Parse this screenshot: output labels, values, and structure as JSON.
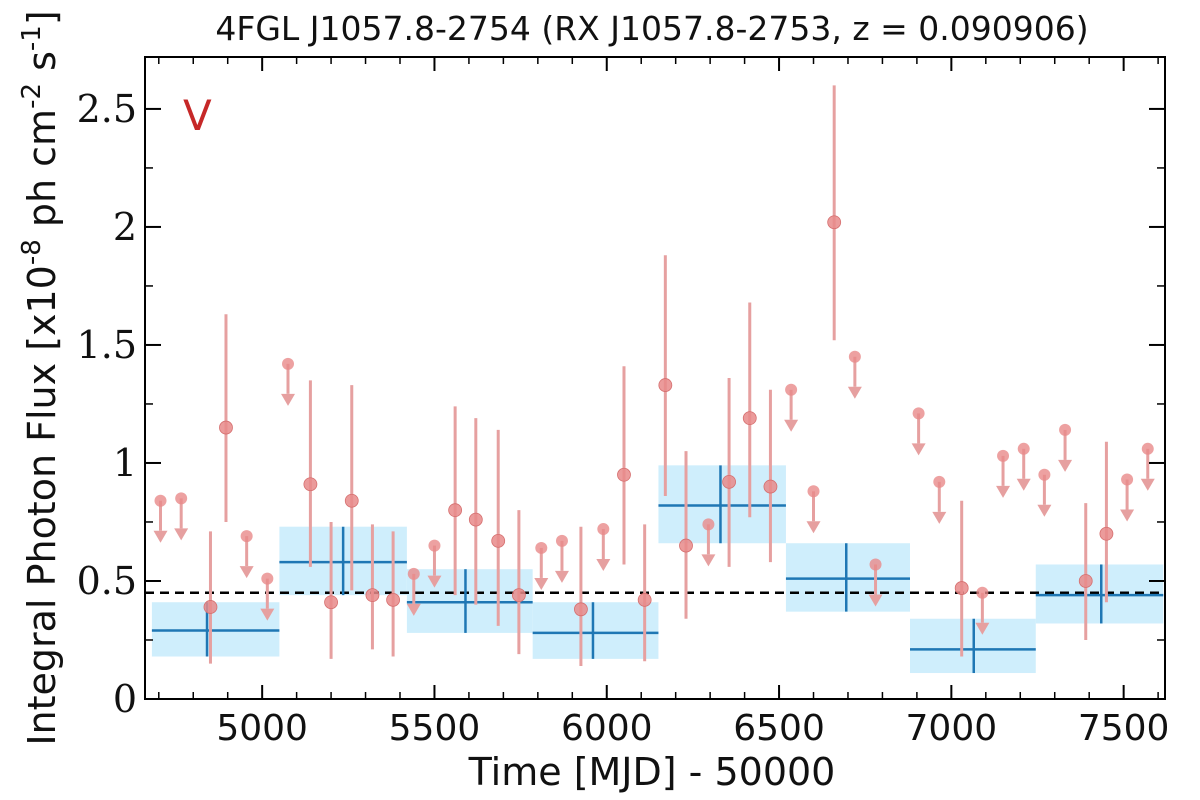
{
  "chart_data": {
    "type": "scatter",
    "title": "4FGL J1057.8-2754 (RX J1057.8-2753, z = 0.090906)",
    "xlabel": "Time [MJD] - 50000",
    "ylabel": "Integral Photon Flux [x10^-8 ph cm^-2 s^-1]",
    "xlim": [
      4660,
      7620
    ],
    "ylim": [
      0,
      2.72
    ],
    "x_ticks": [
      5000,
      5500,
      6000,
      6500,
      7000,
      7500
    ],
    "y_ticks": [
      0,
      0.5,
      1,
      1.5,
      2,
      2.5
    ],
    "y_tick_labels": [
      "0",
      "0.5",
      "1",
      "1.5",
      "2",
      "2.5"
    ],
    "annotation": "V",
    "reference_line": {
      "y": 0.45,
      "style": "dashed",
      "color": "#000000"
    },
    "colors": {
      "points": "#e88a8a",
      "errorbar": "#e6a0a0",
      "bin_line": "#1f77b4",
      "bin_fill": "#cfeefc"
    },
    "series": [
      {
        "kind": "detections",
        "points": [
          {
            "x": 4850,
            "y": 0.39,
            "lo": 0.15,
            "hi": 0.71
          },
          {
            "x": 4895,
            "y": 1.15,
            "lo": 0.75,
            "hi": 1.63
          },
          {
            "x": 5140,
            "y": 0.91,
            "lo": 0.56,
            "hi": 1.35
          },
          {
            "x": 5200,
            "y": 0.41,
            "lo": 0.17,
            "hi": 0.75
          },
          {
            "x": 5260,
            "y": 0.84,
            "lo": 0.46,
            "hi": 1.33
          },
          {
            "x": 5320,
            "y": 0.44,
            "lo": 0.21,
            "hi": 0.74
          },
          {
            "x": 5380,
            "y": 0.42,
            "lo": 0.18,
            "hi": 0.71
          },
          {
            "x": 5560,
            "y": 0.8,
            "lo": 0.44,
            "hi": 1.24
          },
          {
            "x": 5620,
            "y": 0.76,
            "lo": 0.4,
            "hi": 1.19
          },
          {
            "x": 5685,
            "y": 0.67,
            "lo": 0.31,
            "hi": 1.14
          },
          {
            "x": 5745,
            "y": 0.44,
            "lo": 0.19,
            "hi": 0.8
          },
          {
            "x": 5925,
            "y": 0.38,
            "lo": 0.14,
            "hi": 0.73
          },
          {
            "x": 6050,
            "y": 0.95,
            "lo": 0.57,
            "hi": 1.41
          },
          {
            "x": 6110,
            "y": 0.42,
            "lo": 0.16,
            "hi": 0.74
          },
          {
            "x": 6170,
            "y": 1.33,
            "lo": 0.86,
            "hi": 1.88
          },
          {
            "x": 6230,
            "y": 0.65,
            "lo": 0.34,
            "hi": 1.05
          },
          {
            "x": 6355,
            "y": 0.92,
            "lo": 0.56,
            "hi": 1.36
          },
          {
            "x": 6415,
            "y": 1.19,
            "lo": 0.77,
            "hi": 1.68
          },
          {
            "x": 6475,
            "y": 0.9,
            "lo": 0.58,
            "hi": 1.31
          },
          {
            "x": 6660,
            "y": 2.02,
            "lo": 1.52,
            "hi": 2.6
          },
          {
            "x": 7030,
            "y": 0.47,
            "lo": 0.18,
            "hi": 0.84
          },
          {
            "x": 7390,
            "y": 0.5,
            "lo": 0.25,
            "hi": 0.83
          },
          {
            "x": 7450,
            "y": 0.7,
            "lo": 0.41,
            "hi": 1.09
          }
        ]
      },
      {
        "kind": "upper_limits",
        "points": [
          {
            "x": 4705,
            "y": 0.84
          },
          {
            "x": 4765,
            "y": 0.85
          },
          {
            "x": 4955,
            "y": 0.69
          },
          {
            "x": 5015,
            "y": 0.51
          },
          {
            "x": 5075,
            "y": 1.42
          },
          {
            "x": 5440,
            "y": 0.53
          },
          {
            "x": 5500,
            "y": 0.65
          },
          {
            "x": 5810,
            "y": 0.64
          },
          {
            "x": 5870,
            "y": 0.67
          },
          {
            "x": 5990,
            "y": 0.72
          },
          {
            "x": 6295,
            "y": 0.74
          },
          {
            "x": 6535,
            "y": 1.31
          },
          {
            "x": 6600,
            "y": 0.88
          },
          {
            "x": 6720,
            "y": 1.45
          },
          {
            "x": 6780,
            "y": 0.57
          },
          {
            "x": 6905,
            "y": 1.21
          },
          {
            "x": 6965,
            "y": 0.92
          },
          {
            "x": 7090,
            "y": 0.45
          },
          {
            "x": 7150,
            "y": 1.03
          },
          {
            "x": 7210,
            "y": 1.06
          },
          {
            "x": 7270,
            "y": 0.95
          },
          {
            "x": 7330,
            "y": 1.14
          },
          {
            "x": 7510,
            "y": 0.93
          },
          {
            "x": 7570,
            "y": 1.06
          }
        ]
      },
      {
        "kind": "bins",
        "bins": [
          {
            "x0": 4680,
            "x1": 5050,
            "xc": 4840,
            "y": 0.29,
            "ylo": 0.18,
            "yhi": 0.41
          },
          {
            "x0": 5050,
            "x1": 5420,
            "xc": 5235,
            "y": 0.58,
            "ylo": 0.44,
            "yhi": 0.73
          },
          {
            "x0": 5420,
            "x1": 5785,
            "xc": 5590,
            "y": 0.41,
            "ylo": 0.28,
            "yhi": 0.55
          },
          {
            "x0": 5785,
            "x1": 6150,
            "xc": 5960,
            "y": 0.28,
            "ylo": 0.17,
            "yhi": 0.41
          },
          {
            "x0": 6150,
            "x1": 6520,
            "xc": 6330,
            "y": 0.82,
            "ylo": 0.66,
            "yhi": 0.99
          },
          {
            "x0": 6520,
            "x1": 6880,
            "xc": 6695,
            "y": 0.51,
            "ylo": 0.37,
            "yhi": 0.66
          },
          {
            "x0": 6880,
            "x1": 7245,
            "xc": 7065,
            "y": 0.21,
            "ylo": 0.11,
            "yhi": 0.34
          },
          {
            "x0": 7245,
            "x1": 7615,
            "xc": 7435,
            "y": 0.44,
            "ylo": 0.32,
            "yhi": 0.57
          }
        ]
      }
    ]
  }
}
